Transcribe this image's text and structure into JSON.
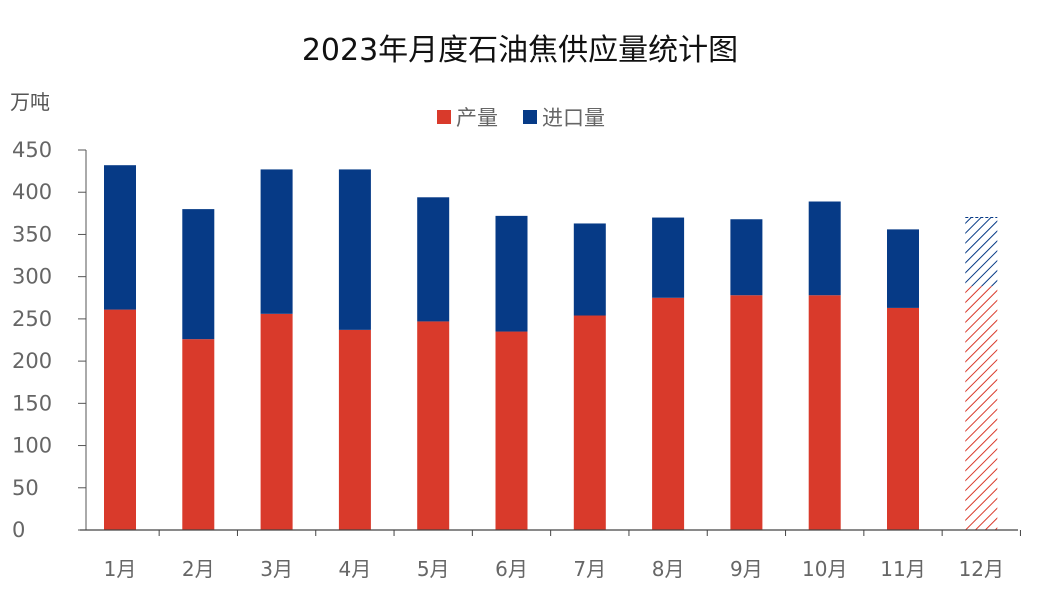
{
  "chart_data": {
    "type": "bar",
    "stacked": true,
    "title": "2023年月度石油焦供应量统计图",
    "ylabel": "万吨",
    "xlabel": "",
    "ylim": [
      0,
      450
    ],
    "yticks": [
      0,
      50,
      100,
      150,
      200,
      250,
      300,
      350,
      400,
      450
    ],
    "grid": false,
    "legend_position": "top-center",
    "categories": [
      "1月",
      "2月",
      "3月",
      "4月",
      "5月",
      "6月",
      "7月",
      "8月",
      "9月",
      "10月",
      "11月",
      "12月"
    ],
    "series": [
      {
        "name": "产量",
        "color": "#d93a2b",
        "values": [
          261,
          226,
          256,
          237,
          247,
          235,
          254,
          275,
          278,
          278,
          263,
          null
        ]
      },
      {
        "name": "进口量",
        "color": "#063a86",
        "values": [
          171,
          154,
          171,
          190,
          147,
          137,
          109,
          95,
          90,
          111,
          93,
          null
        ]
      }
    ],
    "pending": {
      "category": "12月",
      "total": 370,
      "pattern": "hatched"
    }
  }
}
